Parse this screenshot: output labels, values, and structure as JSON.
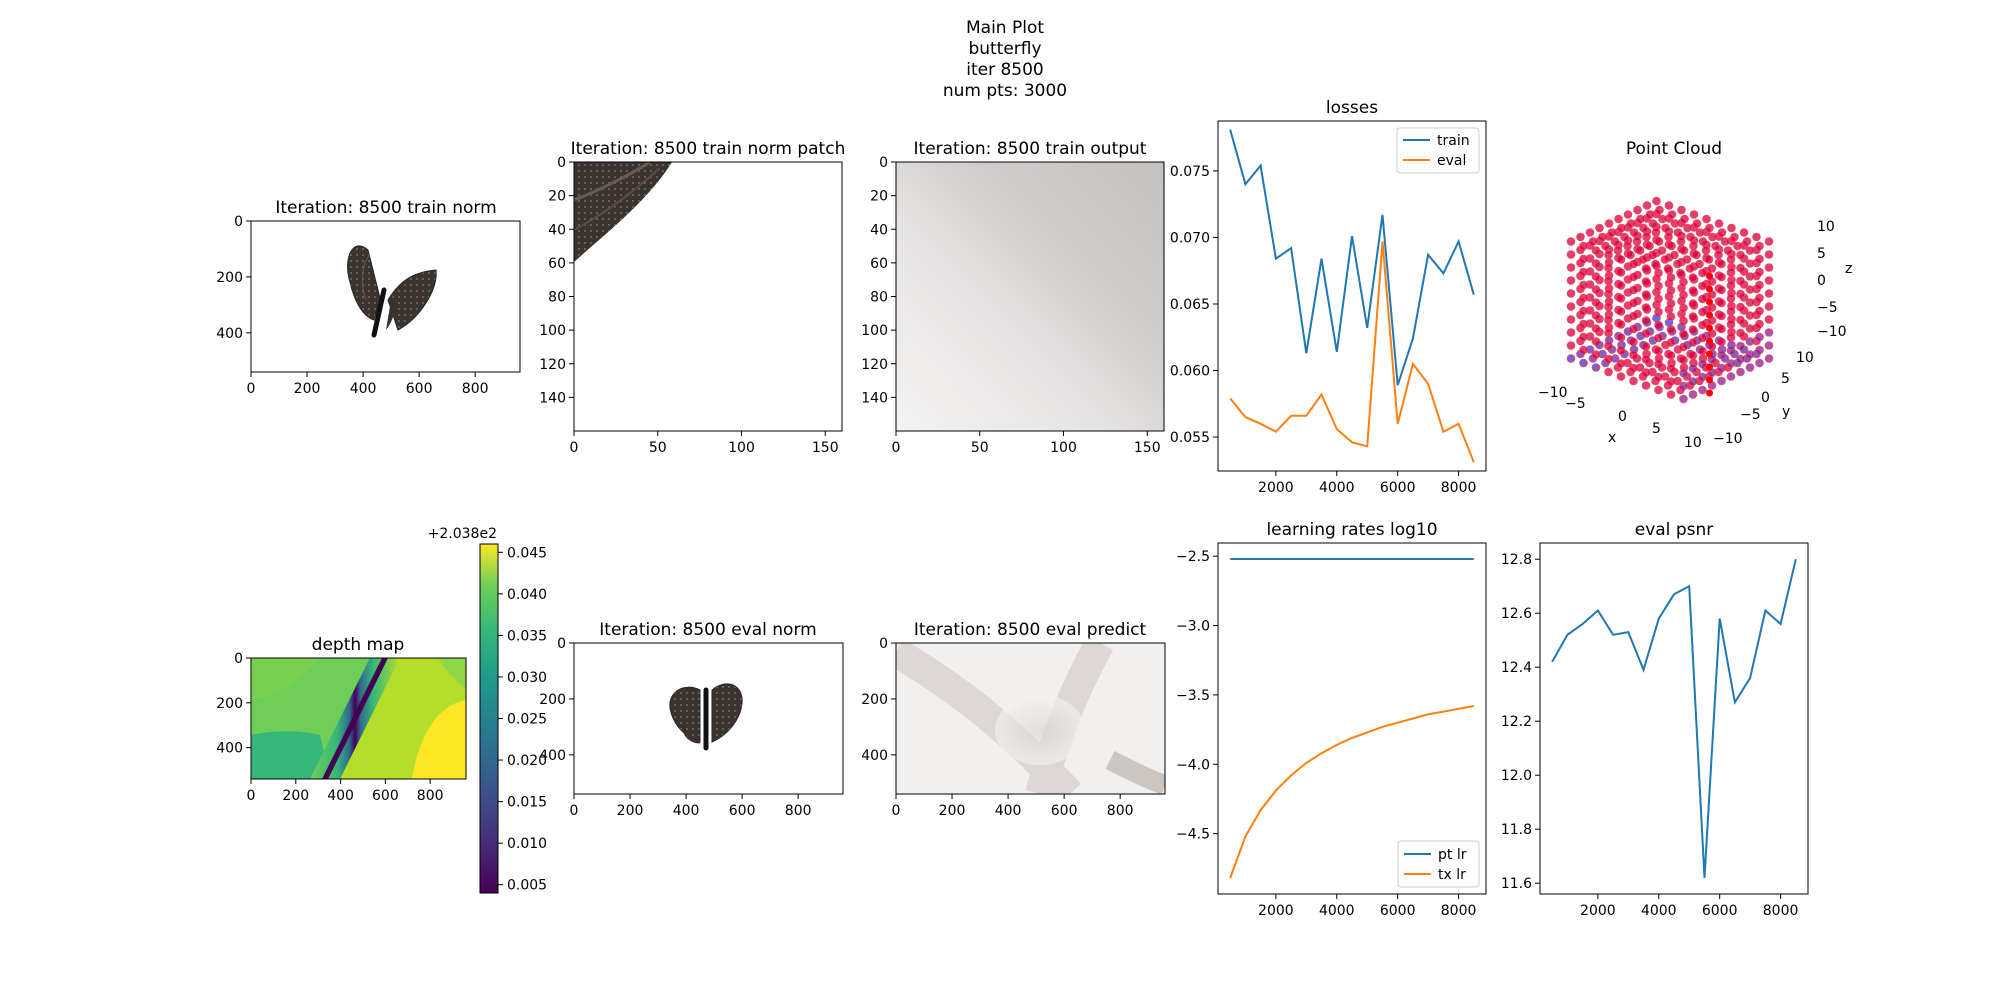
{
  "figure": {
    "suptitle": [
      "Main Plot",
      "butterfly",
      "iter 8500",
      "num pts: 3000"
    ],
    "colors": {
      "train": "#1f77b4",
      "eval": "#ff7f0e",
      "pt_lr": "#1f77b4",
      "tx_lr": "#ff7f0e",
      "pointcloud": "#d6003a"
    }
  },
  "chart_data": [
    {
      "id": "train_norm",
      "type": "image",
      "title": "Iteration: 8500 train norm",
      "content": "butterfly, wings spread, on white background",
      "xticks": [
        0,
        200,
        400,
        600,
        800
      ],
      "yticks": [
        0,
        200,
        400
      ],
      "xlim": [
        0,
        960
      ],
      "ylim": [
        540,
        0
      ]
    },
    {
      "id": "train_norm_patch",
      "type": "image",
      "title": "Iteration: 8500 train norm patch",
      "content": "crop of butterfly wing edge in top-left corner, rest white",
      "xticks": [
        0,
        50,
        100,
        150
      ],
      "yticks": [
        0,
        20,
        40,
        60,
        80,
        100,
        120,
        140
      ],
      "xlim": [
        0,
        160
      ],
      "ylim": [
        160,
        0
      ]
    },
    {
      "id": "train_output",
      "type": "image",
      "title": "Iteration: 8500 train output",
      "content": "smooth gray gradient, darker at top-right",
      "xticks": [
        0,
        50,
        100,
        150
      ],
      "yticks": [
        0,
        20,
        40,
        60,
        80,
        100,
        120,
        140
      ],
      "xlim": [
        0,
        160
      ],
      "ylim": [
        160,
        0
      ]
    },
    {
      "id": "losses",
      "type": "line",
      "title": "losses",
      "x": [
        500,
        1000,
        1500,
        2000,
        2500,
        3000,
        3500,
        4000,
        4500,
        5000,
        5500,
        6000,
        6500,
        7000,
        7500,
        8000,
        8500
      ],
      "series": [
        {
          "name": "train",
          "values": [
            0.0781,
            0.074,
            0.0754,
            0.0684,
            0.0692,
            0.0613,
            0.0684,
            0.0614,
            0.0701,
            0.0632,
            0.0717,
            0.0589,
            0.0624,
            0.0687,
            0.0673,
            0.0697,
            0.0657
          ]
        },
        {
          "name": "eval",
          "values": [
            0.0579,
            0.0565,
            0.056,
            0.0554,
            0.0566,
            0.0566,
            0.0582,
            0.0556,
            0.0546,
            0.0543,
            0.0697,
            0.056,
            0.0605,
            0.059,
            0.0554,
            0.056,
            0.0531
          ]
        }
      ],
      "xticks": [
        2000,
        4000,
        6000,
        8000
      ],
      "yticks": [
        0.055,
        0.06,
        0.065,
        0.07,
        0.075
      ],
      "xlim": [
        100,
        8900
      ],
      "ylim": [
        0.05245,
        0.07875
      ],
      "legend": "upper right"
    },
    {
      "id": "point_cloud",
      "type": "scatter3d",
      "title": "Point Cloud",
      "points": "3000 points on a regular 3D grid cube spanning about -12..12 on x, y and z",
      "xlabel": "x",
      "ylabel": "y",
      "zlabel": "z",
      "xticklabels": [
        "−10",
        "−5",
        "0",
        "5",
        "10"
      ],
      "yticklabels": [
        "10",
        "5",
        "0",
        "−5",
        "−10"
      ],
      "zticklabels": [
        "10",
        "5",
        "0",
        "−5",
        "−10"
      ]
    },
    {
      "id": "depth_map",
      "type": "heatmap",
      "title": "depth map",
      "content": "viridis depth map with a dark diagonal band from bottom-left to top-right",
      "xticks": [
        0,
        200,
        400,
        600,
        800
      ],
      "yticks": [
        0,
        200,
        400
      ],
      "xlim": [
        0,
        960
      ],
      "ylim": [
        540,
        0
      ],
      "colorbar": {
        "ticks": [
          "0.045",
          "0.040",
          "0.035",
          "0.030",
          "0.025",
          "0.020",
          "0.015",
          "0.010",
          "0.005"
        ],
        "offset": "+2.038e2",
        "range": [
          0.004,
          0.046
        ]
      }
    },
    {
      "id": "eval_norm",
      "type": "image",
      "title": "Iteration: 8500 eval norm",
      "content": "butterfly, wings raised, on white background",
      "xticks": [
        0,
        200,
        400,
        600,
        800
      ],
      "yticks": [
        0,
        200,
        400
      ],
      "xlim": [
        0,
        960
      ],
      "ylim": [
        540,
        0
      ]
    },
    {
      "id": "eval_predict",
      "type": "image",
      "title": "Iteration: 8500 eval predict",
      "content": "light gray X shaped blurry pattern",
      "xticks": [
        0,
        200,
        400,
        600,
        800
      ],
      "yticks": [
        0,
        200,
        400
      ],
      "xlim": [
        0,
        960
      ],
      "ylim": [
        540,
        0
      ]
    },
    {
      "id": "learning_rates",
      "type": "line",
      "title": "learning rates log10",
      "x": [
        500,
        1000,
        1500,
        2000,
        2500,
        3000,
        3500,
        4000,
        4500,
        5000,
        5500,
        6000,
        6500,
        7000,
        7500,
        8000,
        8500
      ],
      "series": [
        {
          "name": "pt lr",
          "values": [
            -2.52,
            -2.52,
            -2.52,
            -2.52,
            -2.52,
            -2.52,
            -2.52,
            -2.52,
            -2.52,
            -2.52,
            -2.52,
            -2.52,
            -2.52,
            -2.52,
            -2.52,
            -2.52,
            -2.52
          ]
        },
        {
          "name": "tx lr",
          "values": [
            -4.82,
            -4.52,
            -4.33,
            -4.19,
            -4.08,
            -3.99,
            -3.92,
            -3.86,
            -3.81,
            -3.77,
            -3.73,
            -3.7,
            -3.67,
            -3.64,
            -3.62,
            -3.6,
            -3.58
          ]
        }
      ],
      "xticks": [
        2000,
        4000,
        6000,
        8000
      ],
      "yticks": [
        -2.5,
        -3.0,
        -3.5,
        -4.0,
        -4.5
      ],
      "xlim": [
        100,
        8900
      ],
      "ylim": [
        -4.935,
        -2.405
      ],
      "legend": "lower right"
    },
    {
      "id": "eval_psnr",
      "type": "line",
      "title": "eval psnr",
      "x": [
        500,
        1000,
        1500,
        2000,
        2500,
        3000,
        3500,
        4000,
        4500,
        5000,
        5500,
        6000,
        6500,
        7000,
        7500,
        8000,
        8500
      ],
      "series": [
        {
          "values": [
            12.42,
            12.52,
            12.56,
            12.61,
            12.52,
            12.53,
            12.39,
            12.58,
            12.67,
            12.7,
            11.62,
            12.58,
            12.27,
            12.36,
            12.61,
            12.56,
            12.8
          ]
        }
      ],
      "xticks": [
        2000,
        4000,
        6000,
        8000
      ],
      "yticks": [
        11.6,
        11.8,
        12.0,
        12.2,
        12.4,
        12.6,
        12.8
      ],
      "xlim": [
        100,
        8900
      ],
      "ylim": [
        11.56,
        12.86
      ]
    }
  ]
}
